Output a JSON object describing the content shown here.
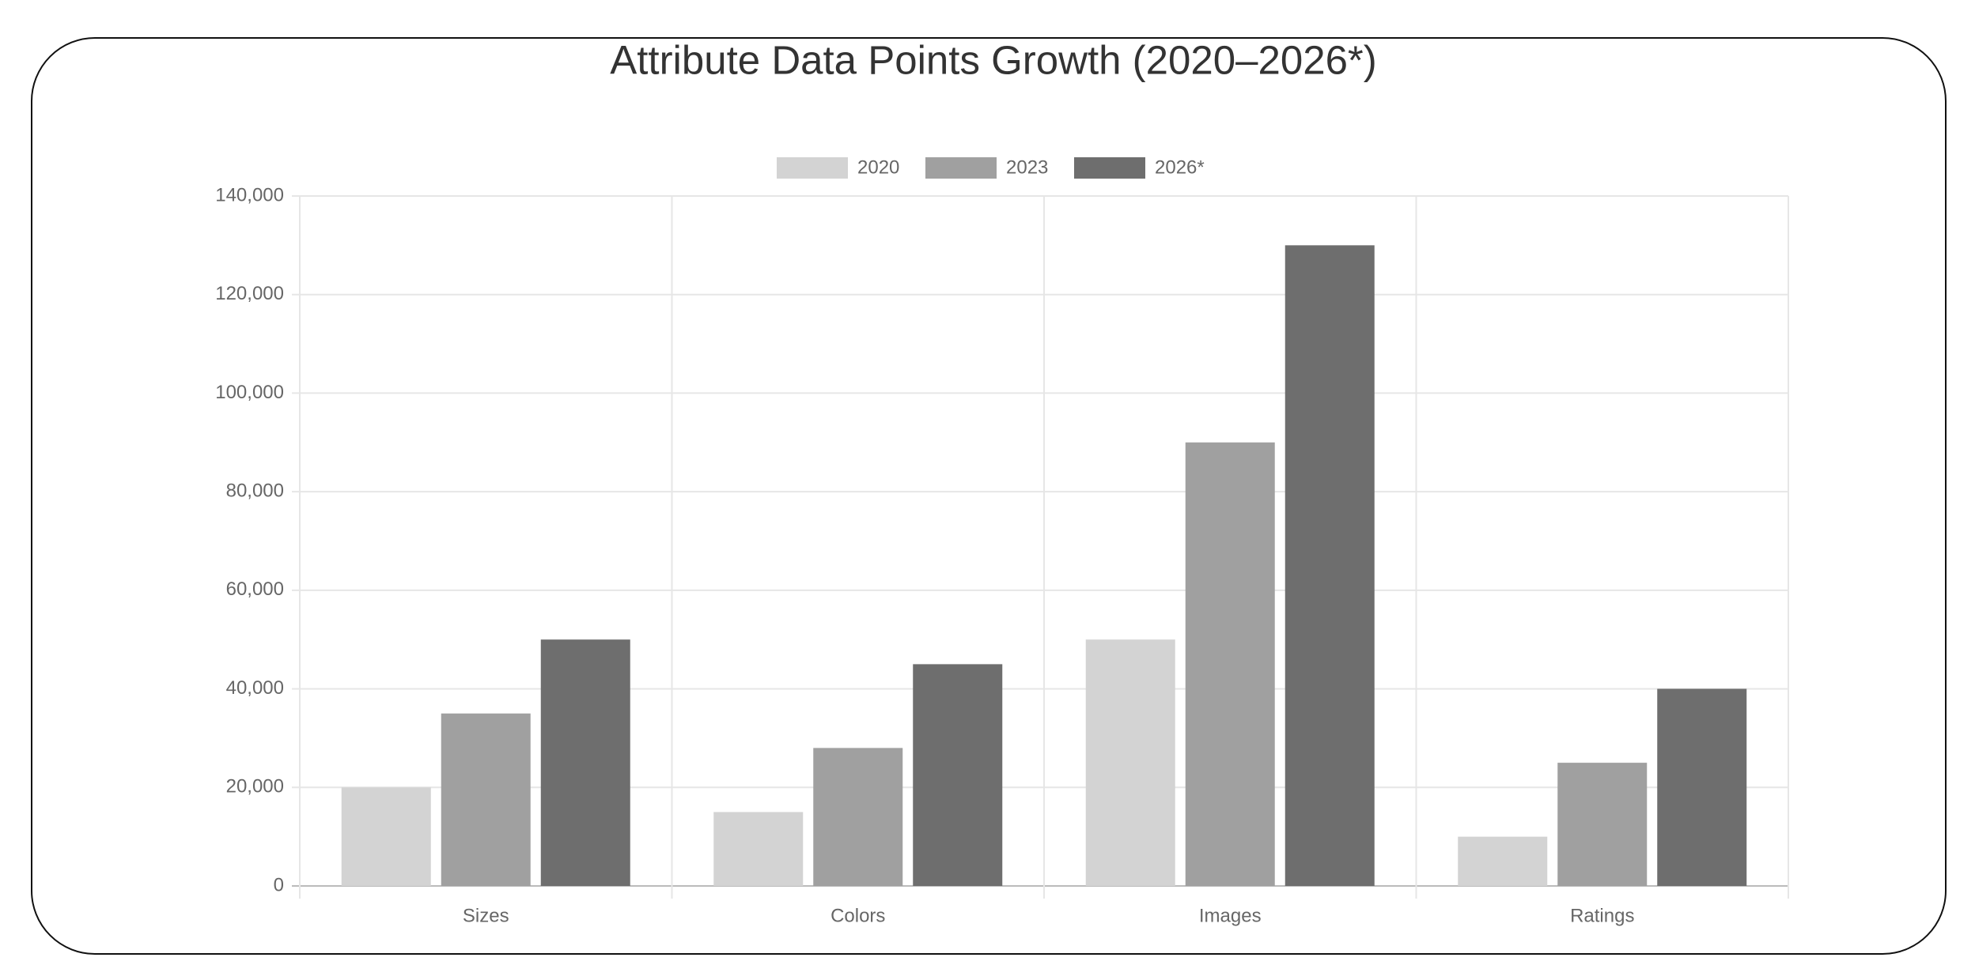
{
  "chart_data": {
    "type": "bar",
    "title": "Attribute Data Points Growth (2020–2026*)",
    "categories": [
      "Sizes",
      "Colors",
      "Images",
      "Ratings"
    ],
    "series": [
      {
        "name": "2020",
        "color": "#d3d3d3",
        "values": [
          20000,
          15000,
          50000,
          10000
        ]
      },
      {
        "name": "2023",
        "color": "#a0a0a0",
        "values": [
          35000,
          28000,
          90000,
          25000
        ]
      },
      {
        "name": "2026*",
        "color": "#6e6e6e",
        "values": [
          50000,
          45000,
          130000,
          40000
        ]
      }
    ],
    "ylim": [
      0,
      140000
    ],
    "yticks": [
      0,
      {
        "value": 20000,
        "label": "20,000"
      },
      {
        "value": 40000,
        "label": "40,000"
      },
      {
        "value": 60000,
        "label": "60,000"
      },
      {
        "value": 80000,
        "label": "80,000"
      },
      {
        "value": 100000,
        "label": "100,000"
      },
      {
        "value": 120000,
        "label": "120,000"
      },
      {
        "value": 140000,
        "label": "140,000"
      }
    ],
    "grid": true,
    "legend": "top"
  }
}
